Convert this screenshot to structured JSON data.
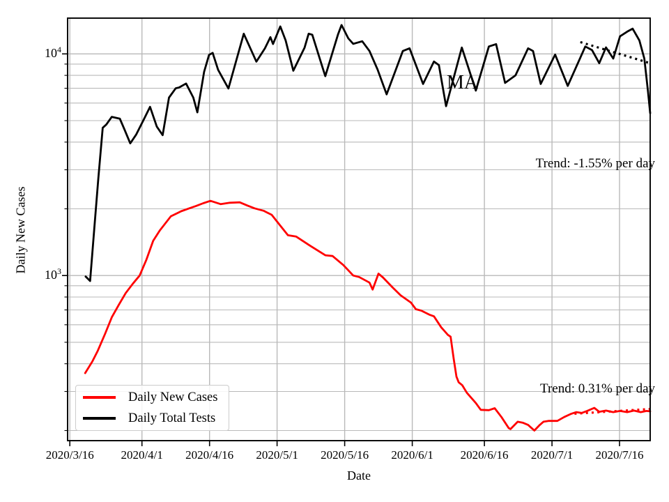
{
  "figure": {
    "background": "#ffffff",
    "state_annotation": "MA",
    "trend_tests_label": "Trend: -1.55% per day",
    "trend_cases_label": "Trend: 0.31% per day"
  },
  "chart_data": {
    "type": "line",
    "title": "",
    "xlabel": "Date",
    "ylabel": "Daily New Cases",
    "yscale": "log",
    "grid": true,
    "grid_color": "#b9b9b9",
    "legend_position": "lower left",
    "ylim": [
      180,
      14500
    ],
    "xlim_days": [
      -0.5,
      128.8
    ],
    "x_tick_days": [
      0,
      16,
      31,
      46,
      61,
      76,
      92,
      107,
      122
    ],
    "x_tick_labels": [
      "2020/3/16",
      "2020/4/1",
      "2020/4/16",
      "2020/5/1",
      "2020/5/16",
      "2020/6/1",
      "2020/6/16",
      "2020/7/1",
      "2020/7/16"
    ],
    "y_ticks": [
      {
        "value": 1000,
        "base": "10",
        "exp": "3"
      },
      {
        "value": 10000,
        "base": "10",
        "exp": "4"
      }
    ],
    "y_minor_gridlines": [
      200,
      300,
      400,
      500,
      600,
      700,
      800,
      900,
      2000,
      3000,
      4000,
      5000,
      6000,
      7000,
      8000,
      9000
    ],
    "series": [
      {
        "name": "Daily New Cases",
        "color": "#ff0000",
        "style": "solid",
        "points": [
          [
            3.4,
            363
          ],
          [
            5,
            410
          ],
          [
            6.2,
            458
          ],
          [
            7.8,
            545
          ],
          [
            9.3,
            648
          ],
          [
            10.9,
            740
          ],
          [
            12.4,
            834
          ],
          [
            14,
            920
          ],
          [
            15.5,
            1000
          ],
          [
            17,
            1180
          ],
          [
            18.5,
            1435
          ],
          [
            20,
            1600
          ],
          [
            21.2,
            1720
          ],
          [
            22.4,
            1850
          ],
          [
            24.7,
            1950
          ],
          [
            26.5,
            2010
          ],
          [
            28,
            2060
          ],
          [
            29.6,
            2120
          ],
          [
            31.2,
            2172
          ],
          [
            33.5,
            2100
          ],
          [
            35.5,
            2130
          ],
          [
            37.7,
            2140
          ],
          [
            39.4,
            2070
          ],
          [
            41,
            2010
          ],
          [
            43,
            1960
          ],
          [
            44.8,
            1880
          ],
          [
            46.6,
            1690
          ],
          [
            48.4,
            1520
          ],
          [
            50.2,
            1500
          ],
          [
            53.3,
            1365
          ],
          [
            56.7,
            1235
          ],
          [
            58.3,
            1225
          ],
          [
            60.7,
            1115
          ],
          [
            62.9,
            1000
          ],
          [
            64.2,
            985
          ],
          [
            66.5,
            930
          ],
          [
            67.2,
            865
          ],
          [
            68.5,
            1020
          ],
          [
            69.5,
            980
          ],
          [
            71.6,
            885
          ],
          [
            73.4,
            815
          ],
          [
            75.7,
            755
          ],
          [
            76.8,
            705
          ],
          [
            78,
            695
          ],
          [
            79.9,
            665
          ],
          [
            80.8,
            655
          ],
          [
            82.4,
            585
          ],
          [
            83.9,
            540
          ],
          [
            84.5,
            530
          ],
          [
            85.2,
            420
          ],
          [
            85.8,
            350
          ],
          [
            86.3,
            330
          ],
          [
            87.1,
            320
          ],
          [
            88.1,
            296
          ],
          [
            90.1,
            266
          ],
          [
            91.2,
            248
          ],
          [
            93,
            247
          ],
          [
            94.3,
            252
          ],
          [
            95.8,
            230
          ],
          [
            97.4,
            205
          ],
          [
            97.8,
            203
          ],
          [
            99.4,
            219
          ],
          [
            100.5,
            217
          ],
          [
            101.7,
            212
          ],
          [
            103.1,
            200
          ],
          [
            104.3,
            212
          ],
          [
            105.1,
            219
          ],
          [
            106.2,
            221
          ],
          [
            108.2,
            221
          ],
          [
            109.7,
            230
          ],
          [
            111.3,
            238
          ],
          [
            112.4,
            242
          ],
          [
            113.6,
            240
          ],
          [
            114.8,
            245
          ],
          [
            116.4,
            253
          ],
          [
            117.5,
            243
          ],
          [
            119,
            246
          ],
          [
            120.6,
            242
          ],
          [
            122.1,
            245
          ],
          [
            123.7,
            242
          ],
          [
            125.2,
            246
          ],
          [
            126.7,
            242
          ],
          [
            128,
            245
          ],
          [
            128.8,
            244
          ]
        ]
      },
      {
        "name": "Daily Total Tests",
        "color": "#000000",
        "style": "solid",
        "points": [
          [
            3.5,
            990
          ],
          [
            4.5,
            945
          ],
          [
            5.4,
            1600
          ],
          [
            6.3,
            2720
          ],
          [
            7.3,
            4640
          ],
          [
            8.1,
            4800
          ],
          [
            9.3,
            5200
          ],
          [
            11.1,
            5100
          ],
          [
            12.1,
            4570
          ],
          [
            13.4,
            3950
          ],
          [
            14.7,
            4320
          ],
          [
            16.5,
            5100
          ],
          [
            17.8,
            5770
          ],
          [
            19.3,
            4700
          ],
          [
            20.6,
            4300
          ],
          [
            22,
            6350
          ],
          [
            23.5,
            7000
          ],
          [
            24.2,
            7050
          ],
          [
            25.8,
            7350
          ],
          [
            27.4,
            6350
          ],
          [
            28.3,
            5450
          ],
          [
            29.8,
            8300
          ],
          [
            30.9,
            9900
          ],
          [
            31.7,
            10100
          ],
          [
            32.9,
            8470
          ],
          [
            35.2,
            6980
          ],
          [
            38.6,
            12330
          ],
          [
            41.4,
            9230
          ],
          [
            43.3,
            10600
          ],
          [
            44.5,
            11900
          ],
          [
            45.1,
            11080
          ],
          [
            46.7,
            13300
          ],
          [
            47.9,
            11500
          ],
          [
            49.6,
            8400
          ],
          [
            52.1,
            10680
          ],
          [
            53,
            12330
          ],
          [
            53.8,
            12200
          ],
          [
            56.1,
            8650
          ],
          [
            56.7,
            7940
          ],
          [
            59.5,
            12200
          ],
          [
            60.3,
            13500
          ],
          [
            61.8,
            11750
          ],
          [
            62.9,
            11100
          ],
          [
            64.9,
            11400
          ],
          [
            66.5,
            10300
          ],
          [
            68.3,
            8500
          ],
          [
            70.3,
            6570
          ],
          [
            73.9,
            10300
          ],
          [
            75.4,
            10600
          ],
          [
            78.4,
            7320
          ],
          [
            80.8,
            9240
          ],
          [
            81.9,
            8900
          ],
          [
            83.5,
            5810
          ],
          [
            87,
            10680
          ],
          [
            90.1,
            6830
          ],
          [
            93,
            10800
          ],
          [
            94.6,
            11070
          ],
          [
            96.6,
            7400
          ],
          [
            98.9,
            8000
          ],
          [
            101.7,
            10600
          ],
          [
            102.8,
            10300
          ],
          [
            104.5,
            7320
          ],
          [
            107.7,
            9930
          ],
          [
            110.5,
            7170
          ],
          [
            114.4,
            10800
          ],
          [
            115.9,
            10400
          ],
          [
            117.5,
            9080
          ],
          [
            119,
            10700
          ],
          [
            120.6,
            9530
          ],
          [
            122.1,
            12000
          ],
          [
            123.7,
            12600
          ],
          [
            124.9,
            13000
          ],
          [
            126.4,
            11500
          ],
          [
            127.5,
            9530
          ],
          [
            128.3,
            6800
          ],
          [
            128.8,
            5400
          ]
        ]
      },
      {
        "name": "tests-trend-line",
        "color": "#000000",
        "style": "dotted",
        "points": [
          [
            113.3,
            11300
          ],
          [
            128.8,
            9080
          ]
        ]
      },
      {
        "name": "cases-trend-line",
        "color": "#ff0000",
        "style": "dotted",
        "points": [
          [
            112,
            238
          ],
          [
            128.8,
            250
          ]
        ]
      }
    ],
    "annotations": [
      {
        "text": "MA"
      },
      {
        "text": "Trend: -1.55% per day"
      },
      {
        "text": "Trend: 0.31% per day"
      }
    ]
  }
}
